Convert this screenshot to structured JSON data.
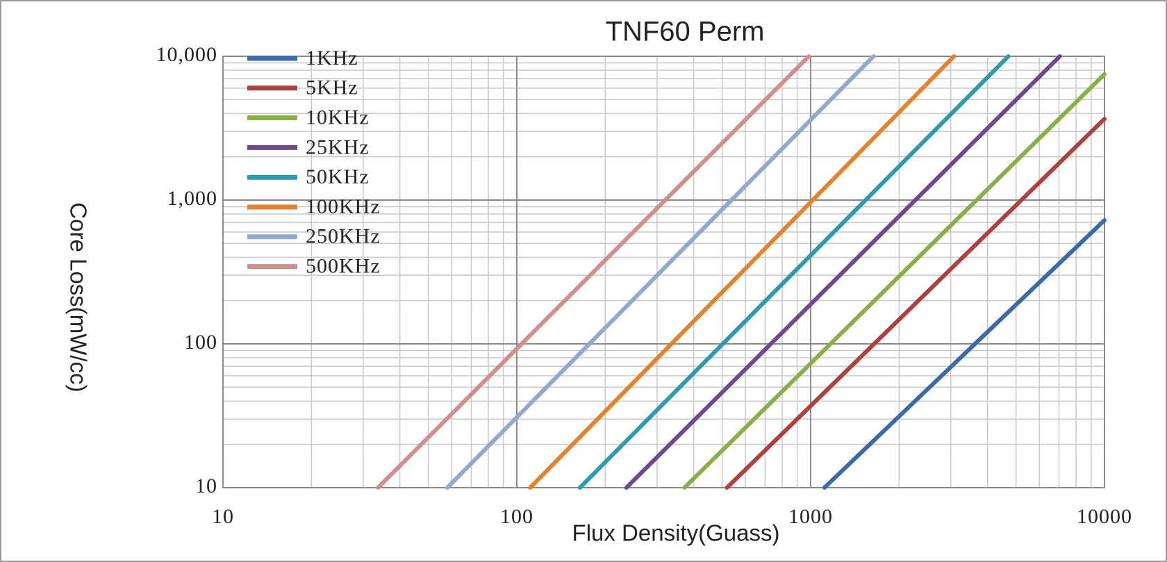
{
  "chart_data": {
    "type": "line",
    "title": "TNF60 Perm",
    "x_label": "Flux Density(Guass)",
    "y_label": "Core Loss(mW/cc)",
    "log_x": true,
    "log_y": true,
    "grid": true,
    "minor_grid": true,
    "legend": "top-left",
    "xlim": [
      10,
      10000
    ],
    "ylim": [
      10,
      10000
    ],
    "xticks": [
      10,
      100,
      1000,
      10000
    ],
    "yticks": [
      10,
      100,
      {
        "value": 1000,
        "label": "1,000"
      },
      {
        "value": 10000,
        "label": "10,000"
      }
    ],
    "series": [
      {
        "name": "1KHz",
        "color": "#3a6aaa",
        "x": [
          1114,
          10000
        ],
        "values": [
          10,
          724
        ]
      },
      {
        "name": "5KHz",
        "color": "#b04040",
        "x": [
          519,
          10000
        ],
        "values": [
          10,
          3670
        ]
      },
      {
        "name": "10KHz",
        "color": "#8aae48",
        "x": [
          372,
          10000
        ],
        "values": [
          10,
          7510
        ]
      },
      {
        "name": "25KHz",
        "color": "#6c4a90",
        "x": [
          236,
          7050
        ],
        "values": [
          10,
          10000
        ]
      },
      {
        "name": "50KHz",
        "color": "#2e9aae",
        "x": [
          164,
          4710
        ],
        "values": [
          10,
          10000
        ]
      },
      {
        "name": "100KHz",
        "color": "#e5822e",
        "x": [
          111,
          3076
        ],
        "values": [
          10,
          10000
        ]
      },
      {
        "name": "250KHz",
        "color": "#92a8d2",
        "x": [
          58,
          1637
        ],
        "values": [
          10,
          10000
        ]
      },
      {
        "name": "500KHz",
        "color": "#d08e90",
        "x": [
          33.7,
          986
        ],
        "values": [
          10,
          10000
        ]
      }
    ]
  }
}
